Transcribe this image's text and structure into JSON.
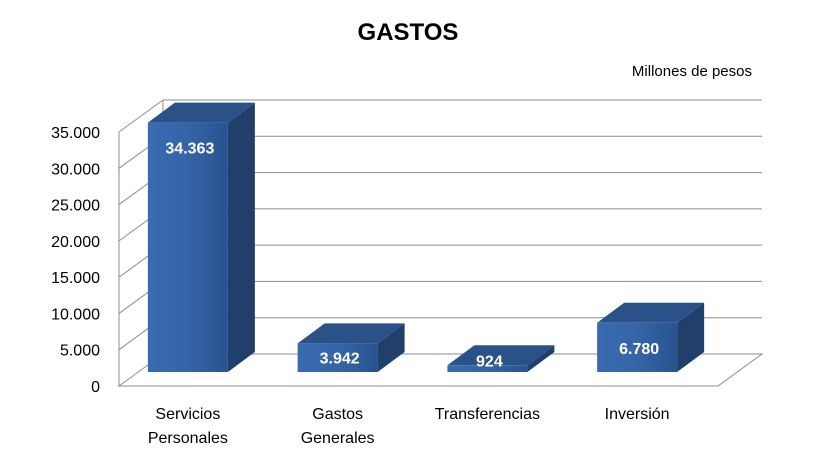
{
  "chart_data": {
    "type": "bar",
    "title": "GASTOS",
    "unit_label": "Millones de pesos",
    "categories": [
      [
        "Servicios",
        "Personales"
      ],
      [
        "Gastos",
        "Generales"
      ],
      [
        "Transferencias"
      ],
      [
        "Inversión"
      ]
    ],
    "values": [
      34363,
      3942,
      924,
      6780
    ],
    "data_labels": [
      "34.363",
      "3.942",
      "924",
      "6.780"
    ],
    "y_ticks": [
      "0",
      "5.000",
      "10.000",
      "15.000",
      "20.000",
      "25.000",
      "30.000",
      "35.000"
    ],
    "ylim": [
      0,
      35000
    ],
    "grid": true,
    "bar_color": "#2E5B9A"
  }
}
